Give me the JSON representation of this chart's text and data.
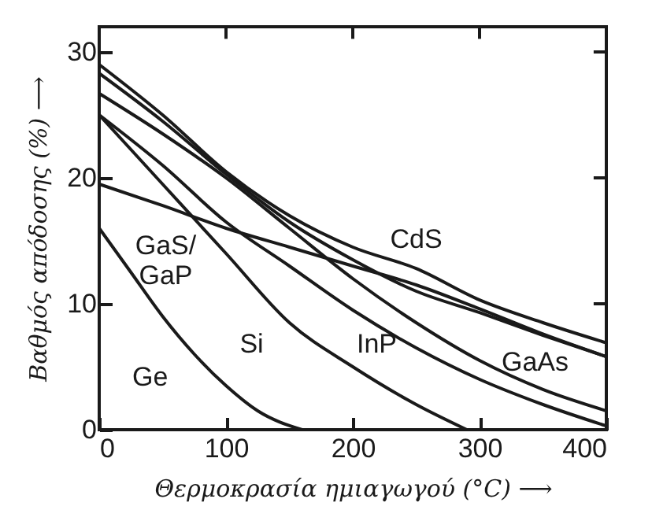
{
  "chart_data": {
    "type": "line",
    "xlabel": "Θερμοκρασία ημιαγωγού (°C) ⟶",
    "ylabel": "Βαθμός απόδοσης (%) ⟶",
    "x": [
      0,
      50,
      100,
      150,
      200,
      250,
      300,
      350,
      400
    ],
    "series": [
      {
        "color": "#1a1a1a",
        "values": [
          29,
          25,
          20.5,
          17,
          14.5,
          12.8,
          10.3,
          8.5,
          6.9
        ]
      },
      {
        "color": "#1a1a1a",
        "values": [
          28.3,
          24.5,
          20.3,
          16.5,
          13.5,
          11,
          9.3,
          7.5,
          5.8
        ]
      },
      {
        "color": "#1a1a1a",
        "values": [
          19.5,
          17.8,
          16,
          14.5,
          13,
          11.5,
          9.6,
          7.6,
          5.8
        ]
      },
      {
        "color": "#1a1a1a",
        "values": [
          26.7,
          23.5,
          20,
          16,
          12,
          8.5,
          5.5,
          3.2,
          1.5
        ]
      },
      {
        "color": "#1a1a1a",
        "values": [
          25,
          21,
          16.5,
          13,
          9.5,
          6.5,
          4,
          2,
          0.3
        ]
      },
      {
        "color": "#1a1a1a",
        "x": [
          0,
          50,
          100,
          150,
          200,
          250,
          290
        ],
        "values": [
          25,
          19.5,
          14,
          8.5,
          5,
          2,
          0
        ]
      },
      {
        "color": "#1a1a1a",
        "x": [
          0,
          25,
          50,
          75,
          100,
          125,
          160
        ],
        "values": [
          16,
          12.5,
          9,
          6,
          3.5,
          1.5,
          0
        ]
      }
    ],
    "annotations": [
      {
        "text": "CdS",
        "x": 250,
        "y": 12.8
      },
      {
        "text": "GaS/GaP",
        "x": 50,
        "y": 17.8
      },
      {
        "text": "Si",
        "x": 150,
        "y": 8.5
      },
      {
        "text": "InP",
        "x": 250,
        "y": 6.5
      },
      {
        "text": "GaAs",
        "x": 350,
        "y": 3.2
      },
      {
        "text": "Ge",
        "x": 75,
        "y": 6
      }
    ],
    "xlim": [
      0,
      400
    ],
    "ylim": [
      0,
      32
    ],
    "xticks": [
      0,
      100,
      200,
      300,
      400
    ],
    "yticks": [
      0,
      10,
      20,
      30
    ]
  }
}
